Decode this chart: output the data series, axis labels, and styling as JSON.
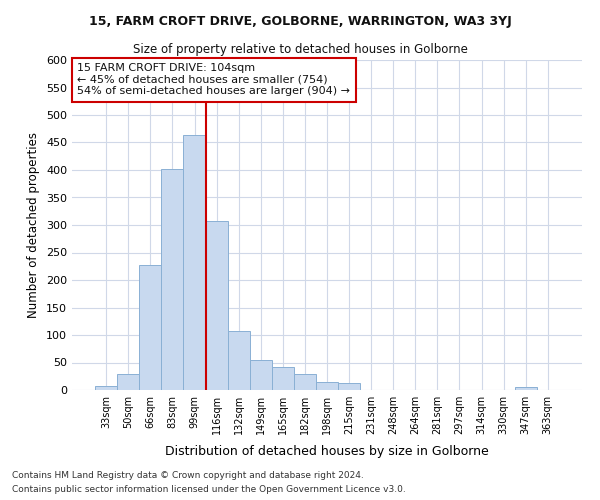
{
  "title": "15, FARM CROFT DRIVE, GOLBORNE, WARRINGTON, WA3 3YJ",
  "subtitle": "Size of property relative to detached houses in Golborne",
  "xlabel": "Distribution of detached houses by size in Golborne",
  "ylabel": "Number of detached properties",
  "categories": [
    "33sqm",
    "50sqm",
    "66sqm",
    "83sqm",
    "99sqm",
    "116sqm",
    "132sqm",
    "149sqm",
    "165sqm",
    "182sqm",
    "198sqm",
    "215sqm",
    "231sqm",
    "248sqm",
    "264sqm",
    "281sqm",
    "297sqm",
    "314sqm",
    "330sqm",
    "347sqm",
    "363sqm"
  ],
  "values": [
    7,
    30,
    228,
    402,
    463,
    307,
    108,
    55,
    41,
    29,
    14,
    13,
    0,
    0,
    0,
    0,
    0,
    0,
    0,
    5,
    0
  ],
  "bar_color": "#c8d9ef",
  "bar_edge_color": "#8ab0d4",
  "vline_x": 4.5,
  "vline_color": "#cc0000",
  "ylim": [
    0,
    600
  ],
  "yticks": [
    0,
    50,
    100,
    150,
    200,
    250,
    300,
    350,
    400,
    450,
    500,
    550,
    600
  ],
  "annotation_line1": "15 FARM CROFT DRIVE: 104sqm",
  "annotation_line2": "← 45% of detached houses are smaller (754)",
  "annotation_line3": "54% of semi-detached houses are larger (904) →",
  "annotation_box_color": "#cc0000",
  "footer1": "Contains HM Land Registry data © Crown copyright and database right 2024.",
  "footer2": "Contains public sector information licensed under the Open Government Licence v3.0.",
  "bg_color": "#ffffff",
  "grid_color": "#d0d8e8"
}
